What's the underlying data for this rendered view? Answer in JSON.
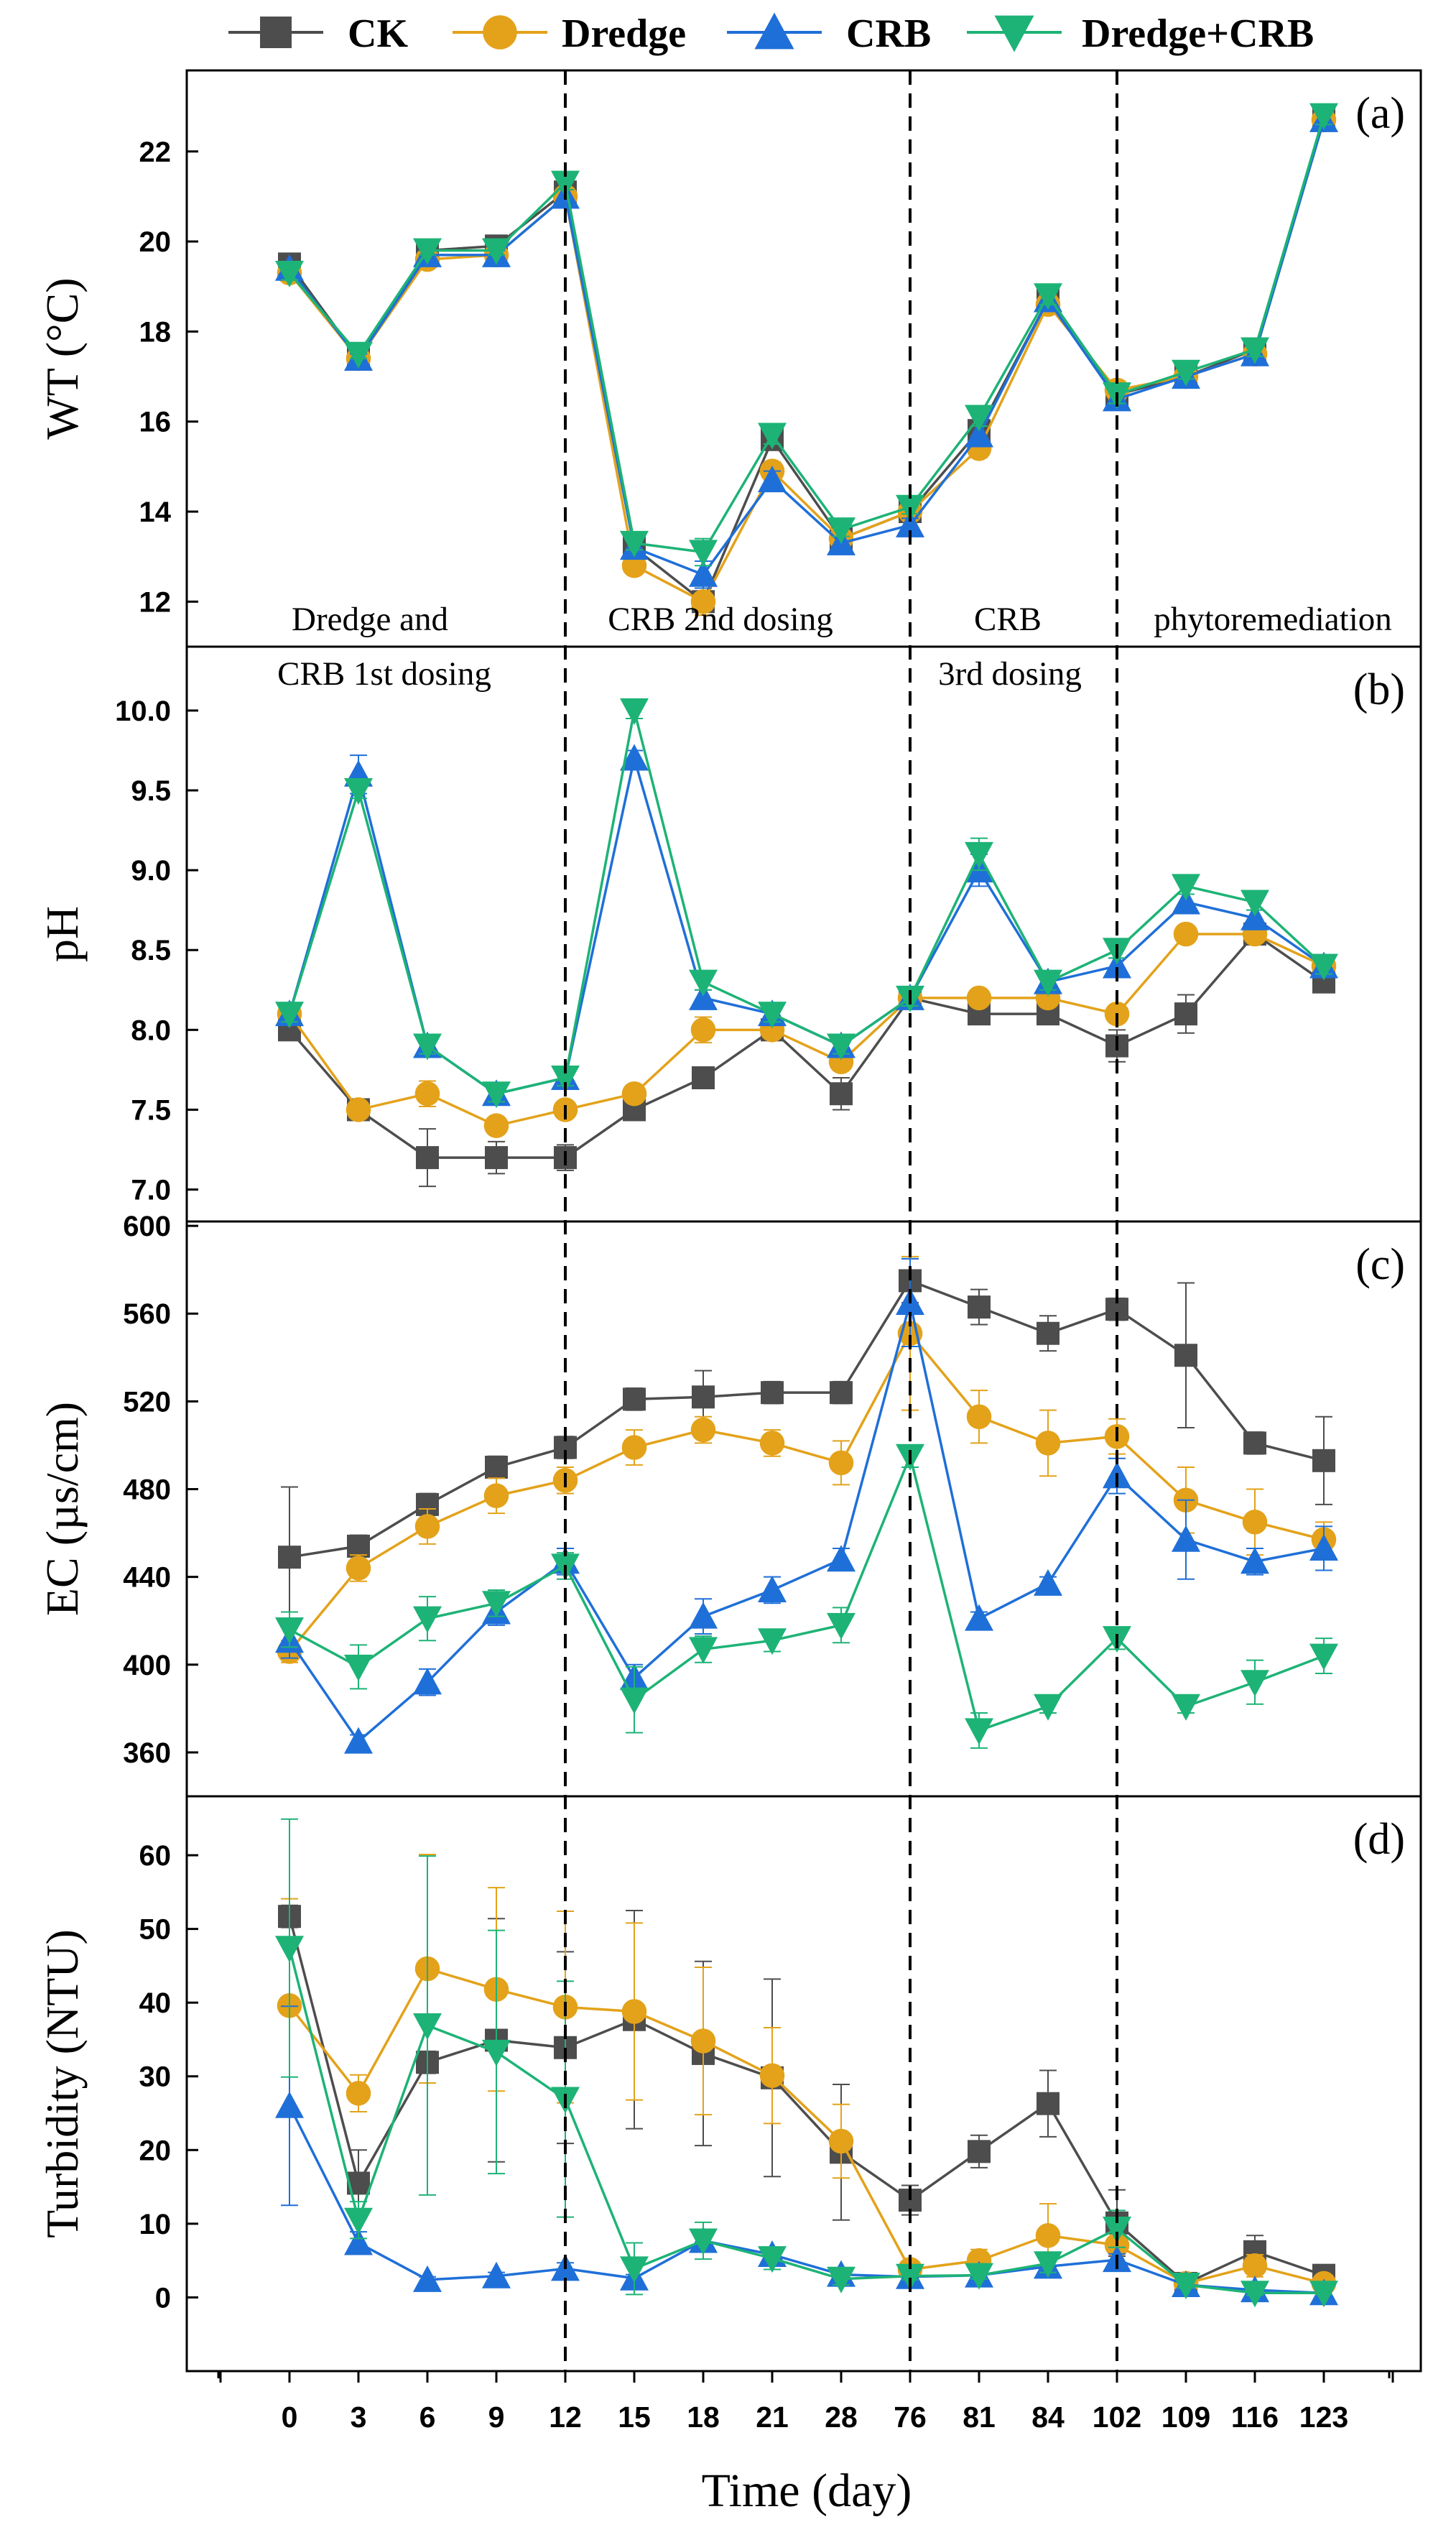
{
  "chart_data": {
    "type": "line",
    "xlabel": "Time (day)",
    "categories": [
      "0",
      "3",
      "6",
      "9",
      "12",
      "15",
      "18",
      "21",
      "28",
      "76",
      "81",
      "84",
      "102",
      "109",
      "116",
      "123"
    ],
    "phase_boundaries_after_category": [
      "12",
      "76",
      "102"
    ],
    "phases": [
      "Dredge and",
      "CRB 1st dosing",
      "CRB 2nd dosing",
      "CRB",
      "3rd dosing",
      "phytoremediation"
    ],
    "legend": [
      {
        "name": "CK",
        "color": "#4d4d4d",
        "marker": "square"
      },
      {
        "name": "Dredge",
        "color": "#e3a21a",
        "marker": "circle"
      },
      {
        "name": "CRB",
        "color": "#1f6fd8",
        "marker": "triangle-up"
      },
      {
        "name": "Dredge+CRB",
        "color": "#1db376",
        "marker": "triangle-down"
      }
    ],
    "panels": [
      {
        "label": "(a)",
        "ylabel": "WT (°C)",
        "ylim": [
          11,
          23.8
        ],
        "yticks": [
          "12",
          "14",
          "16",
          "18",
          "20",
          "22"
        ],
        "series": [
          {
            "name": "CK",
            "values": [
              19.5,
              17.4,
              19.8,
              19.9,
              21.1,
              13.2,
              12.0,
              15.6,
              13.4,
              14.0,
              15.8,
              18.7,
              16.6,
              17.0,
              17.6,
              22.7
            ],
            "errors": [
              0.15,
              0.1,
              0.1,
              0.1,
              0.15,
              0.15,
              0.3,
              0.2,
              0.15,
              0.15,
              0.2,
              0.2,
              0.2,
              0.15,
              0.15,
              0.2
            ]
          },
          {
            "name": "Dredge",
            "values": [
              19.3,
              17.4,
              19.6,
              19.7,
              21.0,
              12.8,
              12.0,
              14.9,
              13.4,
              14.0,
              15.4,
              18.6,
              16.7,
              17.0,
              17.5,
              22.7
            ],
            "errors": [
              0.15,
              0.1,
              0.1,
              0.1,
              0.15,
              0.15,
              0.3,
              0.2,
              0.15,
              0.15,
              0.2,
              0.2,
              0.2,
              0.15,
              0.15,
              0.2
            ]
          },
          {
            "name": "CRB",
            "values": [
              19.4,
              17.4,
              19.7,
              19.7,
              21.0,
              13.2,
              12.6,
              14.7,
              13.3,
              13.7,
              15.7,
              18.7,
              16.5,
              17.0,
              17.5,
              22.7
            ],
            "errors": [
              0.15,
              0.1,
              0.1,
              0.1,
              0.15,
              0.15,
              0.3,
              0.2,
              0.15,
              0.15,
              0.2,
              0.2,
              0.2,
              0.15,
              0.15,
              0.2
            ]
          },
          {
            "name": "Dredge+CRB",
            "values": [
              19.3,
              17.5,
              19.8,
              19.8,
              21.3,
              13.3,
              13.1,
              15.7,
              13.6,
              14.1,
              16.1,
              18.8,
              16.6,
              17.1,
              17.6,
              22.8
            ],
            "errors": [
              0.15,
              0.1,
              0.1,
              0.1,
              0.15,
              0.15,
              0.3,
              0.2,
              0.15,
              0.15,
              0.2,
              0.2,
              0.2,
              0.15,
              0.15,
              0.2
            ]
          }
        ]
      },
      {
        "label": "(b)",
        "ylabel": "pH",
        "ylim": [
          6.8,
          10.4
        ],
        "yticks": [
          "7.0",
          "7.5",
          "8.0",
          "8.5",
          "9.0",
          "9.5",
          "10.0"
        ],
        "series": [
          {
            "name": "CK",
            "values": [
              8.0,
              7.5,
              7.2,
              7.2,
              7.2,
              7.5,
              7.7,
              8.0,
              7.6,
              8.2,
              8.1,
              8.1,
              7.9,
              8.1,
              8.6,
              8.3
            ],
            "errors": [
              0.05,
              0.05,
              0.18,
              0.1,
              0.08,
              0.05,
              0.05,
              0.05,
              0.1,
              0.05,
              0.05,
              0.05,
              0.1,
              0.12,
              0.05,
              0.05
            ]
          },
          {
            "name": "Dredge",
            "values": [
              8.1,
              7.5,
              7.6,
              7.4,
              7.5,
              7.6,
              8.0,
              8.0,
              7.8,
              8.2,
              8.2,
              8.2,
              8.1,
              8.6,
              8.6,
              8.4
            ],
            "errors": [
              0.05,
              0.05,
              0.08,
              0.05,
              0.05,
              0.05,
              0.08,
              0.05,
              0.05,
              0.05,
              0.05,
              0.05,
              0.05,
              0.05,
              0.05,
              0.05
            ]
          },
          {
            "name": "CRB",
            "values": [
              8.1,
              9.6,
              7.9,
              7.6,
              7.7,
              9.7,
              8.2,
              8.1,
              7.9,
              8.2,
              9.0,
              8.3,
              8.4,
              8.8,
              8.7,
              8.4
            ],
            "errors": [
              0.05,
              0.12,
              0.05,
              0.05,
              0.05,
              0.05,
              0.05,
              0.05,
              0.05,
              0.05,
              0.1,
              0.05,
              0.05,
              0.05,
              0.05,
              0.05
            ]
          },
          {
            "name": "Dredge+CRB",
            "values": [
              8.1,
              9.5,
              7.9,
              7.6,
              7.7,
              10.0,
              8.3,
              8.1,
              7.9,
              8.2,
              9.1,
              8.3,
              8.5,
              8.9,
              8.8,
              8.4
            ],
            "errors": [
              0.05,
              0.05,
              0.05,
              0.05,
              0.05,
              0.05,
              0.05,
              0.05,
              0.05,
              0.05,
              0.1,
              0.05,
              0.05,
              0.05,
              0.05,
              0.05
            ]
          }
        ]
      },
      {
        "label": "(c)",
        "ylabel": "EC (µs/cm)",
        "ylim": [
          340,
          602
        ],
        "yticks": [
          "360",
          "400",
          "440",
          "480",
          "520",
          "560",
          "600"
        ],
        "series": [
          {
            "name": "CK",
            "values": [
              449,
              454,
              473,
              490,
              499,
              521,
              522,
              524,
              524,
              575,
              563,
              551,
              562,
              541,
              501,
              493
            ],
            "errors": [
              32,
              5,
              5,
              5,
              5,
              5,
              12,
              5,
              5,
              10,
              8,
              8,
              5,
              33,
              5,
              20
            ]
          },
          {
            "name": "Dredge",
            "values": [
              406,
              444,
              463,
              477,
              484,
              499,
              507,
              501,
              492,
              551,
              513,
              501,
              504,
              475,
              465,
              457
            ],
            "errors": [
              5,
              6,
              8,
              8,
              6,
              8,
              6,
              6,
              10,
              35,
              12,
              15,
              8,
              15,
              15,
              8
            ]
          },
          {
            "name": "CRB",
            "values": [
              411,
              365,
              392,
              424,
              447,
              394,
              422,
              434,
              448,
              565,
              421,
              437,
              486,
              457,
              447,
              453
            ],
            "errors": [
              8,
              3,
              6,
              6,
              6,
              6,
              8,
              6,
              5,
              20,
              3,
              3,
              8,
              18,
              6,
              10
            ]
          },
          {
            "name": "Dredge+CRB",
            "values": [
              416,
              399,
              421,
              428,
              445,
              384,
              407,
              411,
              418,
              495,
              370,
              381,
              412,
              381,
              392,
              404
            ],
            "errors": [
              8,
              10,
              10,
              6,
              6,
              15,
              6,
              5,
              8,
              5,
              8,
              3,
              5,
              3,
              10,
              8
            ]
          }
        ]
      },
      {
        "label": "(d)",
        "ylabel": "Turbidity (NTU)",
        "ylim": [
          -10,
          68
        ],
        "yticks": [
          "0",
          "10",
          "20",
          "30",
          "40",
          "50",
          "60"
        ],
        "series": [
          {
            "name": "CK",
            "values": [
              51.7,
              15.5,
              31.9,
              34.9,
              33.9,
              37.7,
              33.1,
              29.8,
              19.7,
              13.2,
              19.8,
              26.3,
              10.1,
              1.9,
              6.2,
              3.0
            ],
            "errors": [
              1.5,
              4.5,
              1.5,
              16.5,
              13.0,
              14.8,
              12.5,
              13.4,
              9.2,
              2.0,
              2.2,
              4.5,
              4.5,
              1.0,
              2.2,
              0.8
            ]
          },
          {
            "name": "Dredge",
            "values": [
              39.6,
              27.7,
              44.6,
              41.8,
              39.4,
              38.8,
              34.8,
              30.1,
              21.2,
              3.8,
              5.0,
              8.4,
              7.1,
              1.9,
              4.3,
              1.9
            ],
            "errors": [
              14.5,
              2.5,
              15.5,
              13.8,
              13.0,
              12.0,
              10.0,
              6.5,
              5.0,
              0.8,
              1.5,
              4.3,
              2.5,
              0.8,
              1.5,
              0.5
            ]
          },
          {
            "name": "CRB",
            "values": [
              26.0,
              7.4,
              2.4,
              2.9,
              3.9,
              2.6,
              7.7,
              5.8,
              3.1,
              2.8,
              3.0,
              4.2,
              5.1,
              1.7,
              1.0,
              0.6
            ],
            "errors": [
              13.5,
              1.5,
              0.4,
              0.5,
              0.8,
              0.5,
              1.0,
              1.0,
              0.5,
              0.5,
              0.5,
              0.8,
              0.8,
              0.4,
              0.3,
              0.2
            ]
          },
          {
            "name": "Dredge+CRB",
            "values": [
              47.4,
              10.5,
              36.9,
              33.3,
              26.9,
              3.9,
              7.7,
              5.3,
              2.5,
              2.9,
              3.0,
              4.6,
              9.3,
              1.7,
              0.6,
              0.6
            ],
            "errors": [
              17.5,
              2.5,
              23.0,
              16.5,
              16.0,
              3.5,
              2.5,
              1.5,
              0.8,
              0.5,
              0.5,
              1.2,
              2.5,
              0.4,
              0.3,
              0.2
            ]
          }
        ]
      }
    ]
  }
}
